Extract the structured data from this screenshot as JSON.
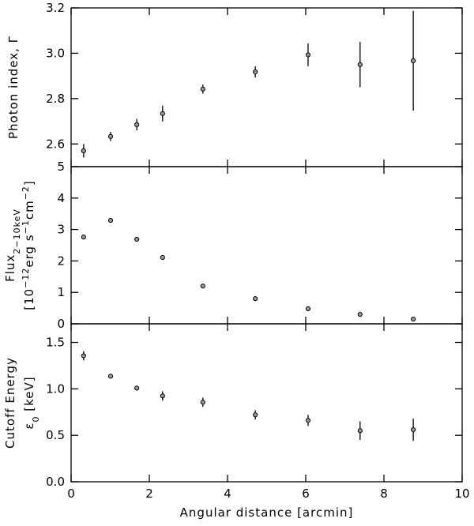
{
  "chart_data": [
    {
      "type": "scatter",
      "ylabel": [
        [
          "Photon index, Γ"
        ]
      ],
      "x": [
        0.32,
        1.01,
        1.68,
        2.34,
        3.37,
        4.71,
        6.06,
        7.39,
        8.75
      ],
      "values": [
        2.57,
        2.633,
        2.685,
        2.734,
        2.842,
        2.918,
        2.993,
        2.95,
        2.967
      ],
      "errors": [
        0.03,
        0.02,
        0.025,
        0.035,
        0.02,
        0.025,
        0.05,
        0.1,
        0.22
      ],
      "xlim": [
        0,
        10
      ],
      "xticks": [
        0,
        2,
        4,
        6,
        8,
        10
      ],
      "ylim": [
        2.5,
        3.2
      ],
      "yticks": [
        2.6,
        2.8,
        {
          "value": 3,
          "label": "3.0"
        },
        3.2
      ]
    },
    {
      "type": "scatter",
      "ylabel": [
        [
          "Flux",
          "2−10keV"
        ],
        [
          "[10",
          "−12",
          "erg s",
          "−1",
          "cm",
          "−2",
          "]"
        ]
      ],
      "x": [
        0.32,
        1.01,
        1.68,
        2.34,
        3.37,
        4.71,
        6.06,
        7.39,
        8.75
      ],
      "values": [
        2.76,
        3.29,
        2.69,
        2.11,
        1.2,
        0.8,
        0.48,
        0.3,
        0.15
      ],
      "xlim": [
        0,
        10
      ],
      "xticks": [
        0,
        2,
        4,
        6,
        8,
        10
      ],
      "ylim": [
        0,
        5
      ],
      "yticks": [
        0,
        1,
        2,
        3,
        4,
        5
      ]
    },
    {
      "type": "scatter",
      "ylabel": [
        [
          "Cutoff Energy"
        ],
        [
          "ε",
          "0",
          " [keV]"
        ]
      ],
      "x": [
        0.32,
        1.01,
        1.68,
        2.34,
        3.37,
        4.71,
        6.06,
        7.39,
        8.75
      ],
      "values": [
        1.356,
        1.136,
        1.008,
        0.924,
        0.856,
        0.72,
        0.66,
        0.55,
        0.56
      ],
      "errors": [
        0.05,
        0.02,
        0.025,
        0.05,
        0.05,
        0.05,
        0.06,
        0.1,
        0.12
      ],
      "xlim": [
        0,
        10
      ],
      "xticks": [
        0,
        2,
        4,
        6,
        8,
        10
      ],
      "ylim": [
        0,
        1.7
      ],
      "yticks": [
        {
          "value": 0,
          "label": "0.0"
        },
        0.5,
        {
          "value": 1,
          "label": "1.0"
        },
        1.5
      ],
      "xlabel": "Angular distance [arcmin]"
    }
  ]
}
